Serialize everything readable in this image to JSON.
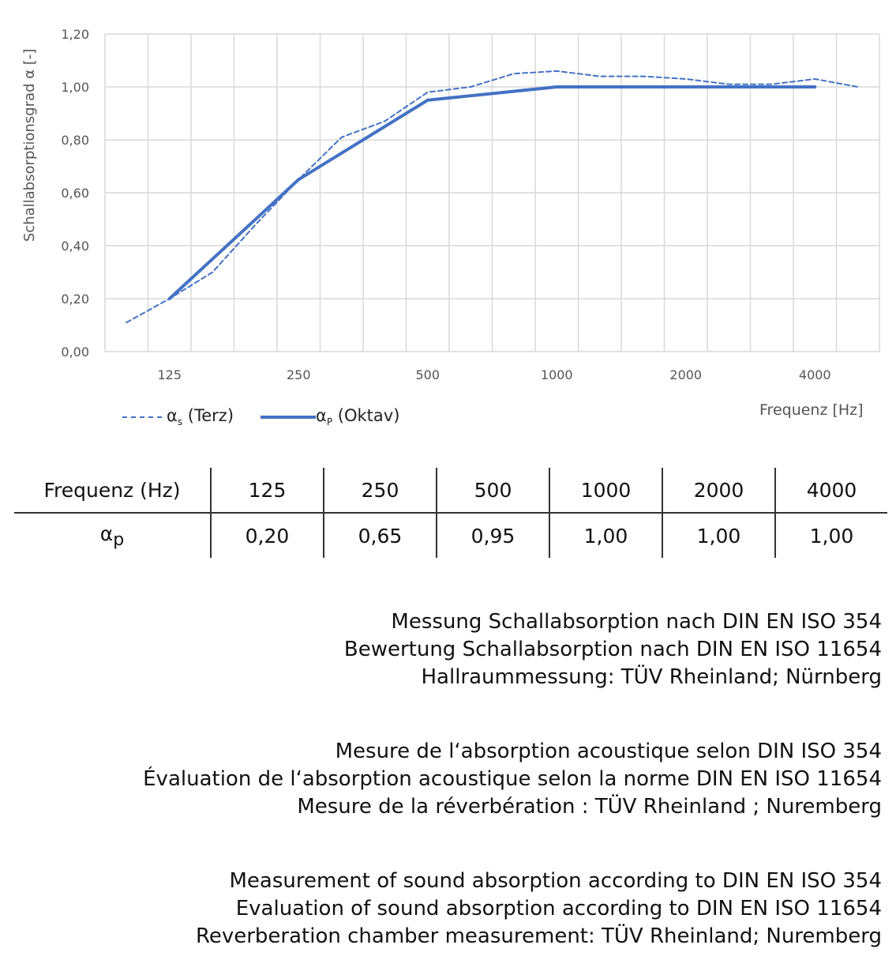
{
  "chart_data": {
    "type": "line",
    "ylabel": "Schallabsorptionsgrad α [-]",
    "xlabel": "Frequenz [Hz]",
    "ylim": [
      0,
      1.2
    ],
    "yticks": [
      "0,00",
      "0,20",
      "0,40",
      "0,60",
      "0,80",
      "1,00",
      "1,20"
    ],
    "grid": true,
    "legend_placement": "bottom-left",
    "x_bands": [
      100,
      125,
      160,
      200,
      250,
      315,
      400,
      500,
      630,
      800,
      1000,
      1250,
      1600,
      2000,
      2500,
      3150,
      4000,
      5000
    ],
    "xtick_labels": [
      "125",
      "250",
      "500",
      "1000",
      "2000",
      "4000"
    ],
    "series": [
      {
        "name": "αs (Terz)",
        "legend_main": "α",
        "legend_sub": "s",
        "legend_rest": " (Terz)",
        "style": "dashed",
        "color": "#4472c4",
        "x": [
          100,
          125,
          160,
          200,
          250,
          315,
          400,
          500,
          630,
          800,
          1000,
          1250,
          1600,
          2000,
          2500,
          3150,
          4000,
          5000
        ],
        "values": [
          0.11,
          0.2,
          0.3,
          0.48,
          0.65,
          0.81,
          0.87,
          0.98,
          1.0,
          1.05,
          1.06,
          1.04,
          1.04,
          1.03,
          1.01,
          1.01,
          1.03,
          1.0
        ]
      },
      {
        "name": "αP (Oktav)",
        "legend_main": "α",
        "legend_sub": "P",
        "legend_rest": " (Oktav)",
        "style": "solid",
        "color": "#4472c4",
        "x": [
          125,
          250,
          500,
          1000,
          2000,
          4000
        ],
        "values": [
          0.2,
          0.65,
          0.95,
          1.0,
          1.0,
          1.0
        ]
      }
    ]
  },
  "table": {
    "header": "Frequenz (Hz)",
    "row_label_main": "α",
    "row_label_sub": "p",
    "frequencies": [
      "125",
      "250",
      "500",
      "1000",
      "2000",
      "4000"
    ],
    "values": [
      "0,20",
      "0,65",
      "0,95",
      "1,00",
      "1,00",
      "1,00"
    ]
  },
  "notes": [
    [
      "Messung Schallabsorption nach DIN EN ISO 354",
      "Bewertung Schallabsorption nach DIN EN ISO 11654",
      "Hallraummessung: TÜV Rheinland; Nürnberg"
    ],
    [
      "Mesure de l‘absorption acoustique selon DIN ISO 354",
      "Évaluation de l‘absorption acoustique selon la norme DIN EN ISO 11654",
      "Mesure de la réverbération : TÜV Rheinland ; Nuremberg"
    ],
    [
      "Measurement of sound absorption according to DIN EN ISO 354",
      "Evaluation of sound absorption according to DIN EN ISO 11654",
      "Reverberation chamber measurement: TÜV Rheinland; Nuremberg"
    ]
  ]
}
